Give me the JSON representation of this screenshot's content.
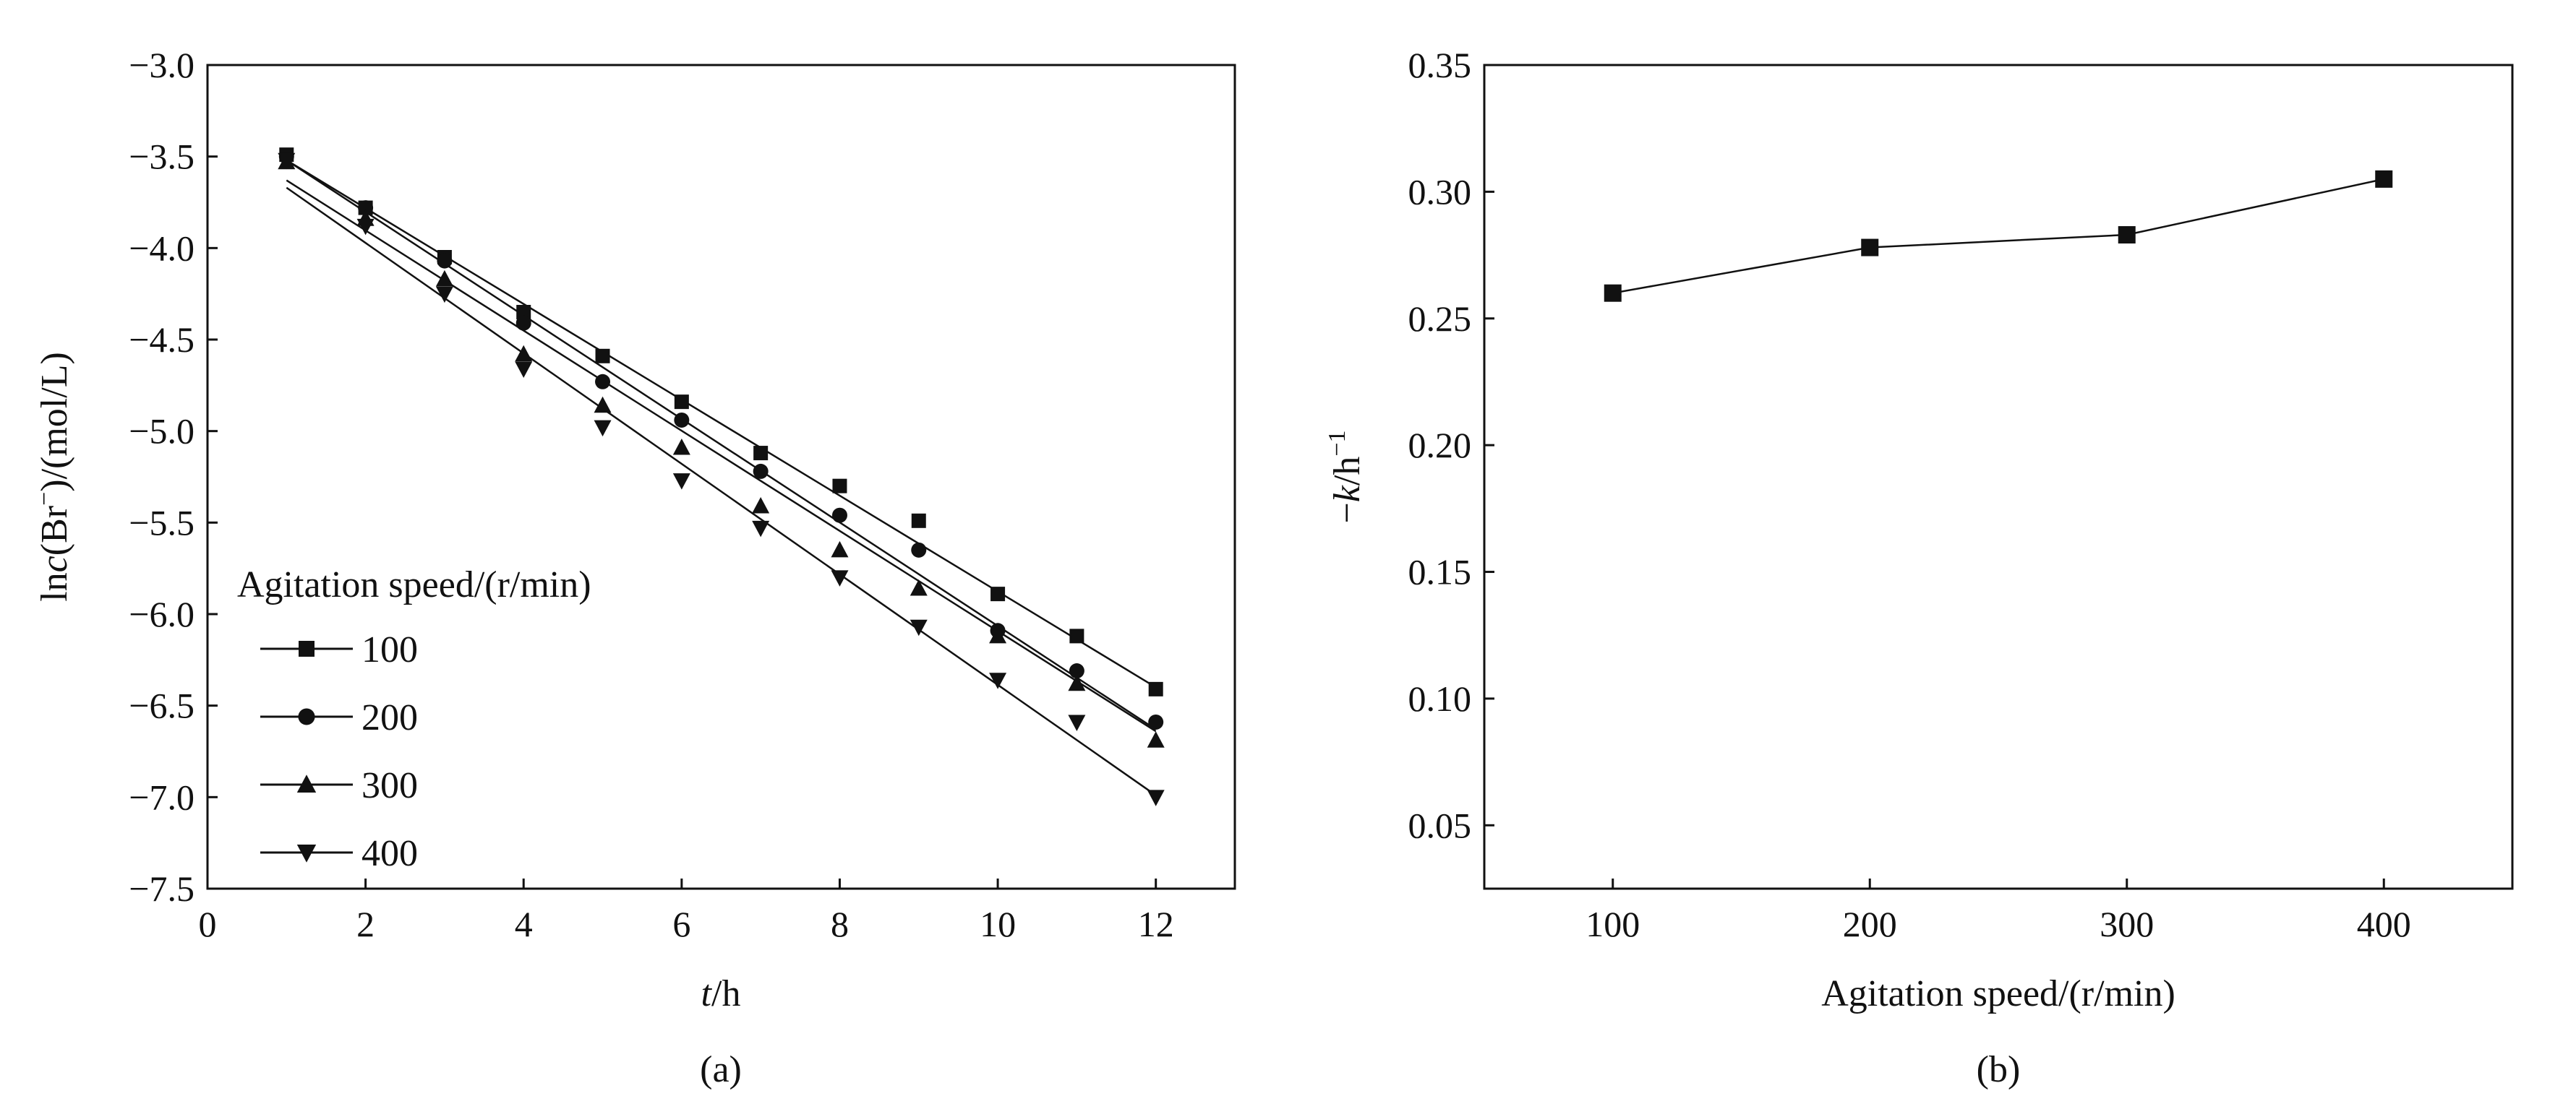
{
  "chart_data": [
    {
      "type": "scatter",
      "panel_label": "(a)",
      "xlabel": {
        "italic": "t",
        "rest": "/h"
      },
      "ylabel": {
        "pre": "ln",
        "italic": "c",
        "mid": "(Br",
        "sup": "−",
        "post": ")/(mol/L)"
      },
      "xlim": [
        0,
        13
      ],
      "ylim": [
        -7.5,
        -3.0
      ],
      "xticks": [
        0,
        2,
        4,
        6,
        8,
        10,
        12
      ],
      "xtick_labels": [
        "0",
        "2",
        "4",
        "6",
        "8",
        "10",
        "12"
      ],
      "yticks": [
        -3.0,
        -3.5,
        -4.0,
        -4.5,
        -5.0,
        -5.5,
        -6.0,
        -6.5,
        -7.0,
        -7.5
      ],
      "ytick_labels": [
        "−3.0",
        "−3.5",
        "−4.0",
        "−4.5",
        "−5.0",
        "−5.5",
        "−6.0",
        "−6.5",
        "−7.0",
        "−7.5"
      ],
      "legend": {
        "title": "Agitation speed/(r/min)",
        "placement": "lower-left"
      },
      "series": [
        {
          "name": "100",
          "marker": "square",
          "x": [
            1,
            2,
            3,
            4,
            5,
            6,
            7,
            8,
            9,
            10,
            11,
            12
          ],
          "y": [
            -3.49,
            -3.78,
            -4.05,
            -4.35,
            -4.59,
            -4.84,
            -5.12,
            -5.3,
            -5.49,
            -5.89,
            -6.12,
            -6.41
          ],
          "fit": [
            [
              1,
              -3.52
            ],
            [
              12,
              -6.4
            ]
          ]
        },
        {
          "name": "200",
          "marker": "circle",
          "x": [
            1,
            2,
            3,
            4,
            5,
            6,
            7,
            8,
            9,
            10,
            11,
            12
          ],
          "y": [
            -3.5,
            -3.78,
            -4.07,
            -4.41,
            -4.73,
            -4.94,
            -5.22,
            -5.46,
            -5.65,
            -6.09,
            -6.31,
            -6.59
          ],
          "fit": [
            [
              1,
              -3.52
            ],
            [
              12,
              -6.63
            ]
          ]
        },
        {
          "name": "300",
          "marker": "triangle-up",
          "x": [
            1,
            2,
            3,
            4,
            5,
            6,
            7,
            8,
            9,
            10,
            11,
            12
          ],
          "y": [
            -3.53,
            -3.84,
            -4.17,
            -4.58,
            -4.86,
            -5.09,
            -5.41,
            -5.65,
            -5.86,
            -6.12,
            -6.38,
            -6.69
          ],
          "fit": [
            [
              1,
              -3.63
            ],
            [
              12,
              -6.64
            ]
          ]
        },
        {
          "name": "400",
          "marker": "triangle-down",
          "x": [
            1,
            2,
            3,
            4,
            5,
            6,
            7,
            8,
            9,
            10,
            11,
            12
          ],
          "y": [
            -3.52,
            -3.88,
            -4.25,
            -4.66,
            -4.98,
            -5.27,
            -5.53,
            -5.8,
            -6.07,
            -6.36,
            -6.59,
            -7.0
          ],
          "fit": [
            [
              1,
              -3.67
            ],
            [
              12,
              -6.99
            ]
          ]
        }
      ]
    },
    {
      "type": "line",
      "panel_label": "(b)",
      "xlabel": "Agitation speed/(r/min)",
      "ylabel": {
        "pre": "−",
        "italic": "k",
        "mid": "/h",
        "sup": "−1"
      },
      "xlim": [
        50,
        450
      ],
      "ylim": [
        0.025,
        0.35
      ],
      "xticks": [
        100,
        200,
        300,
        400
      ],
      "xtick_labels": [
        "100",
        "200",
        "300",
        "400"
      ],
      "yticks": [
        0.05,
        0.1,
        0.15,
        0.2,
        0.25,
        0.3,
        0.35
      ],
      "ytick_labels": [
        "0.05",
        "0.10",
        "0.15",
        "0.20",
        "0.25",
        "0.30",
        "0.35"
      ],
      "series": [
        {
          "marker": "square",
          "x": [
            100,
            200,
            300,
            400
          ],
          "y": [
            0.26,
            0.278,
            0.283,
            0.305
          ]
        }
      ]
    }
  ]
}
